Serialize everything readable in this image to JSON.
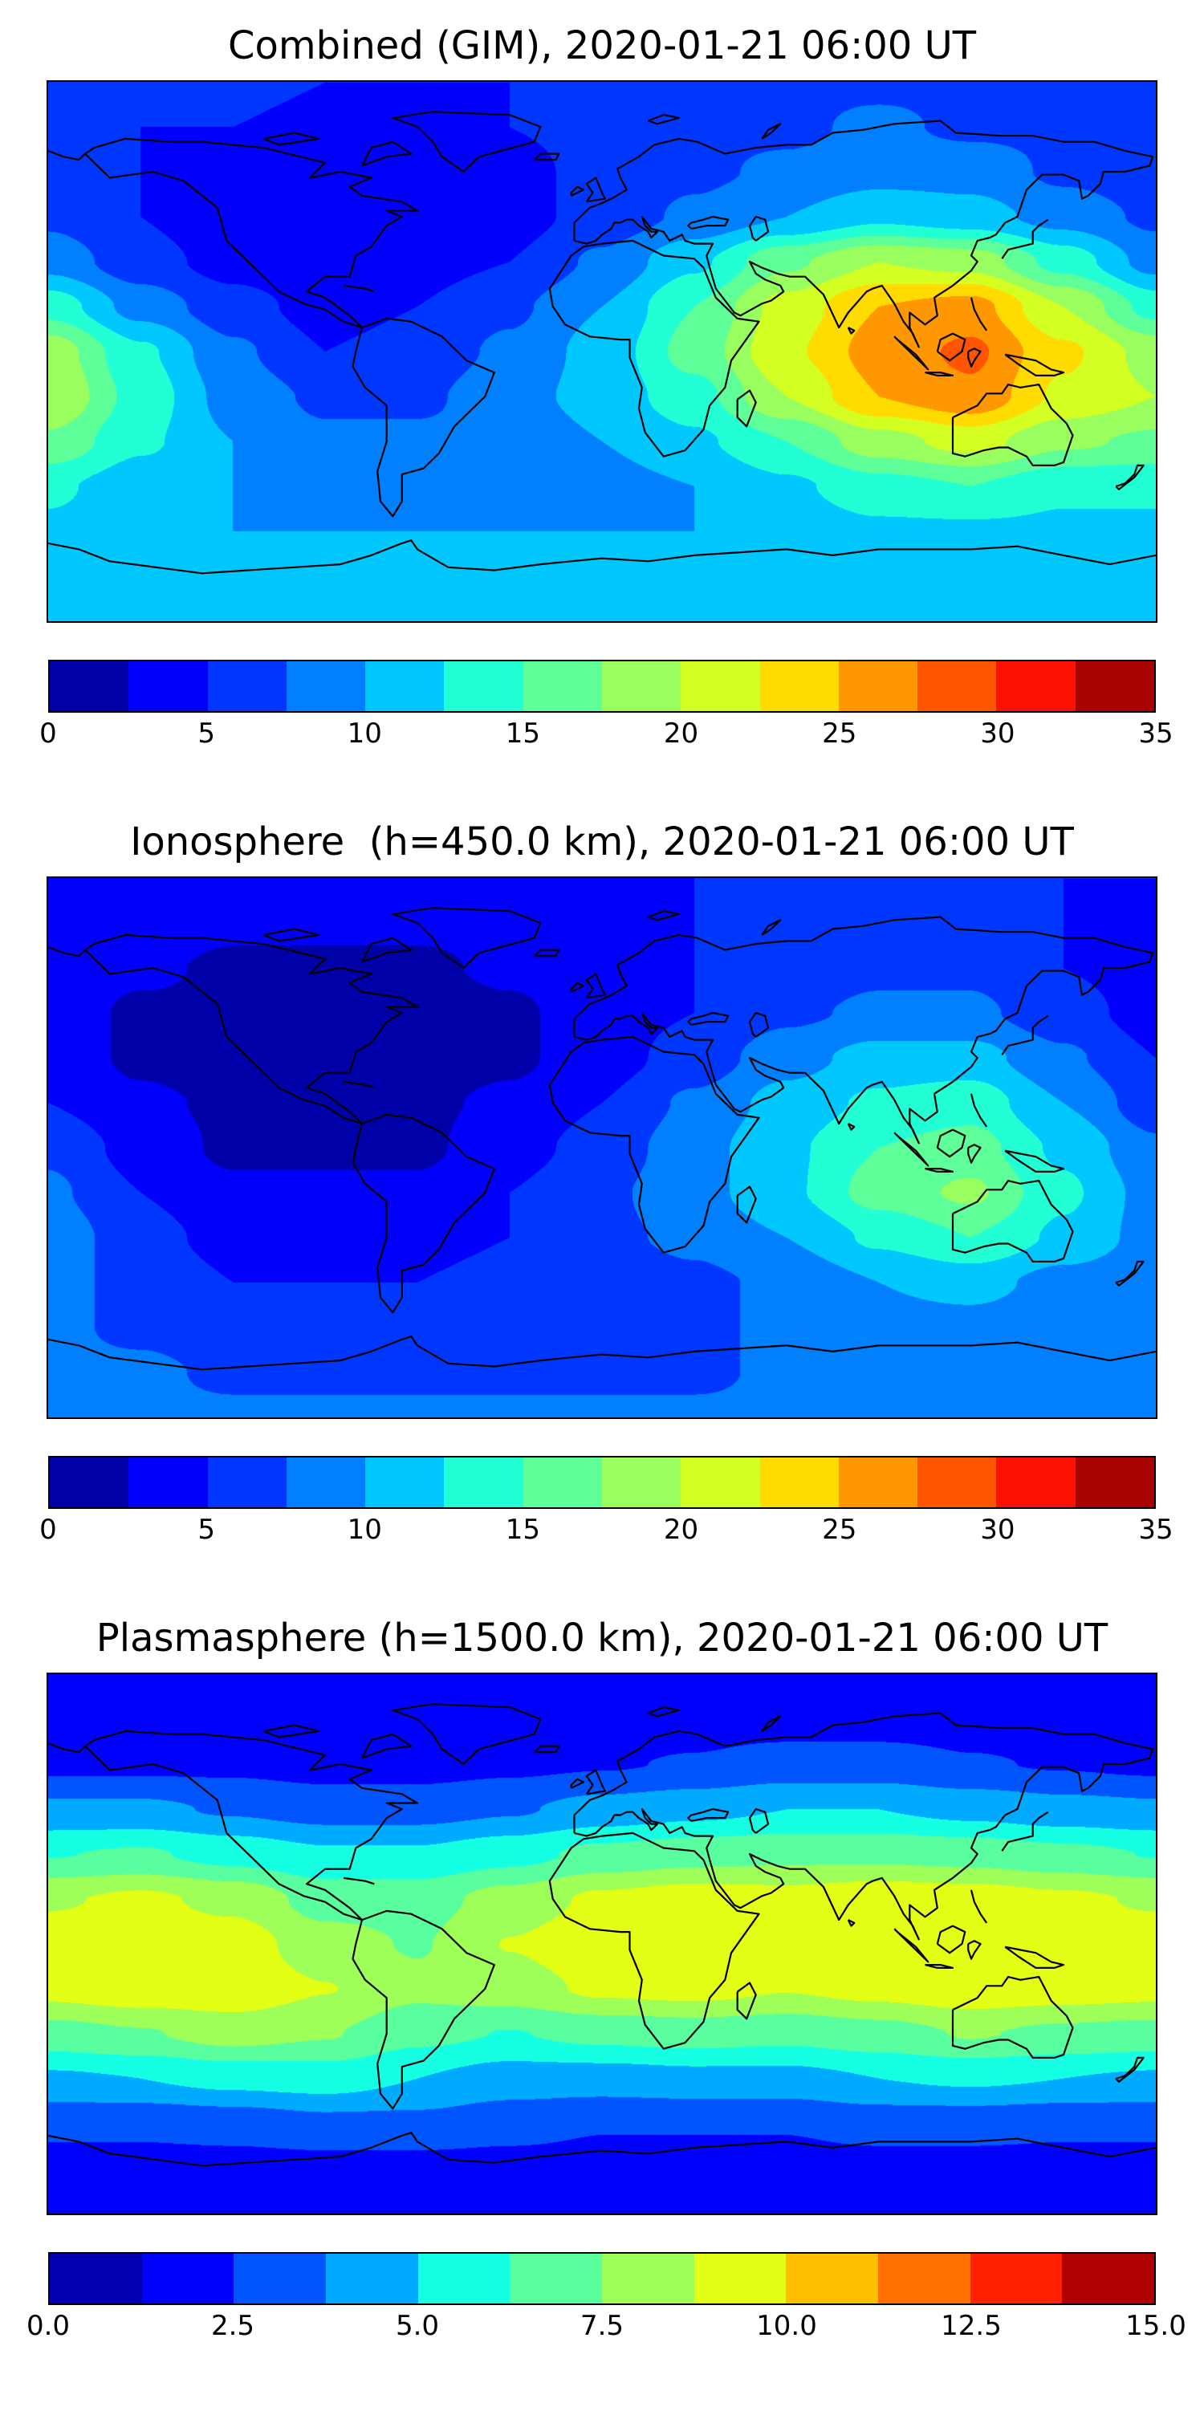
{
  "figure": {
    "background_color": "#ffffff",
    "text_color": "#000000"
  },
  "chart_data": [
    {
      "type": "heatmap",
      "subtype": "filled-contour world map (equirectangular, coastlines overlaid)",
      "title": "Combined (GIM), 2020-01-21 06:00 UT",
      "colormap": "jet",
      "levels": 14,
      "vmin": 0,
      "vmax": 35,
      "colorbar_position": "bottom",
      "colorbar_ticks": [
        "0",
        "5",
        "10",
        "15",
        "20",
        "25",
        "30",
        "35"
      ],
      "colorbar_tick_values": [
        0,
        5,
        10,
        15,
        20,
        25,
        30,
        35
      ],
      "grid": {
        "lons": [
          -180,
          -150,
          -120,
          -90,
          -60,
          -30,
          0,
          30,
          60,
          90,
          120,
          150,
          180
        ],
        "lats": [
          90,
          75,
          60,
          45,
          30,
          15,
          0,
          -15,
          -30,
          -45,
          -60,
          -75,
          -90
        ],
        "values": [
          [
            6,
            6,
            6,
            5,
            5,
            5,
            6,
            6,
            7,
            7,
            7,
            6,
            6
          ],
          [
            6,
            5,
            5,
            4,
            4,
            5,
            6,
            7,
            7,
            8,
            7,
            7,
            6
          ],
          [
            6,
            5,
            4,
            3,
            3,
            4,
            6,
            7,
            8,
            9,
            9,
            7,
            6
          ],
          [
            7,
            5,
            3,
            3,
            3,
            4,
            6,
            8,
            10,
            12,
            11,
            9,
            7
          ],
          [
            9,
            6,
            4,
            3,
            4,
            5,
            8,
            12,
            17,
            20,
            19,
            14,
            9
          ],
          [
            14,
            9,
            6,
            4,
            5,
            7,
            10,
            15,
            21,
            25,
            26,
            20,
            14
          ],
          [
            19,
            13,
            8,
            5,
            6,
            8,
            11,
            16,
            22,
            26,
            28,
            23,
            19
          ],
          [
            20,
            14,
            9,
            7,
            7,
            9,
            11,
            14,
            20,
            25,
            27,
            22,
            20
          ],
          [
            17,
            13,
            10,
            8,
            8,
            8,
            10,
            12,
            15,
            19,
            21,
            18,
            17
          ],
          [
            13,
            11,
            10,
            9,
            9,
            9,
            9,
            10,
            12,
            14,
            15,
            13,
            13
          ],
          [
            12,
            11,
            10,
            10,
            10,
            10,
            10,
            10,
            11,
            12,
            12,
            12,
            12
          ],
          [
            12,
            11,
            11,
            11,
            11,
            11,
            11,
            11,
            11,
            12,
            12,
            12,
            12
          ],
          [
            12,
            12,
            12,
            12,
            12,
            12,
            12,
            12,
            12,
            12,
            12,
            12,
            12
          ]
        ]
      }
    },
    {
      "type": "heatmap",
      "subtype": "filled-contour world map (equirectangular, coastlines overlaid)",
      "title": "Ionosphere  (h=450.0 km), 2020-01-21 06:00 UT",
      "colormap": "jet",
      "levels": 14,
      "vmin": 0,
      "vmax": 35,
      "colorbar_position": "bottom",
      "colorbar_ticks": [
        "0",
        "5",
        "10",
        "15",
        "20",
        "25",
        "30",
        "35"
      ],
      "colorbar_tick_values": [
        0,
        5,
        10,
        15,
        20,
        25,
        30,
        35
      ],
      "grid": {
        "lons": [
          -180,
          -150,
          -120,
          -90,
          -60,
          -30,
          0,
          30,
          60,
          90,
          120,
          150,
          180
        ],
        "lats": [
          90,
          75,
          60,
          45,
          30,
          15,
          0,
          -15,
          -30,
          -45,
          -60,
          -75,
          -90
        ],
        "values": [
          [
            5,
            4,
            4,
            4,
            4,
            4,
            4,
            5,
            6,
            6,
            6,
            5,
            5
          ],
          [
            4,
            4,
            3,
            3,
            3,
            3,
            4,
            5,
            6,
            6,
            6,
            5,
            4
          ],
          [
            4,
            3,
            2,
            2,
            2,
            3,
            4,
            5,
            6,
            7,
            7,
            5,
            4
          ],
          [
            4,
            2,
            2,
            1,
            1,
            2,
            4,
            5,
            7,
            8,
            8,
            6,
            4
          ],
          [
            4,
            2,
            1,
            1,
            1,
            2,
            4,
            6,
            9,
            11,
            11,
            8,
            5
          ],
          [
            5,
            3,
            2,
            1,
            2,
            3,
            5,
            8,
            11,
            13,
            14,
            10,
            6
          ],
          [
            7,
            4,
            2,
            2,
            2,
            4,
            6,
            9,
            12,
            15,
            16,
            12,
            8
          ],
          [
            8,
            5,
            3,
            3,
            3,
            5,
            7,
            9,
            12,
            16,
            18,
            13,
            9
          ],
          [
            9,
            6,
            4,
            4,
            4,
            5,
            7,
            8,
            10,
            13,
            15,
            12,
            9
          ],
          [
            8,
            7,
            5,
            5,
            5,
            6,
            6,
            7,
            8,
            10,
            11,
            9,
            8
          ],
          [
            8,
            7,
            6,
            6,
            6,
            6,
            7,
            7,
            8,
            9,
            9,
            8,
            8
          ],
          [
            8,
            8,
            7,
            7,
            7,
            7,
            7,
            7,
            8,
            8,
            8,
            8,
            8
          ],
          [
            8,
            8,
            8,
            8,
            8,
            8,
            8,
            8,
            8,
            8,
            8,
            8,
            8
          ]
        ]
      }
    },
    {
      "type": "heatmap",
      "subtype": "filled-contour world map (equirectangular, coastlines overlaid)",
      "title": "Plasmasphere (h=1500.0 km), 2020-01-21 06:00 UT",
      "colormap": "jet",
      "levels": 12,
      "vmin": 0,
      "vmax": 15,
      "colorbar_position": "bottom",
      "colorbar_ticks": [
        "0.0",
        "2.5",
        "5.0",
        "7.5",
        "10.0",
        "12.5",
        "15.0"
      ],
      "colorbar_tick_values": [
        0,
        2.5,
        5,
        7.5,
        10,
        12.5,
        15
      ],
      "grid": {
        "lons": [
          -180,
          -150,
          -120,
          -90,
          -60,
          -30,
          0,
          30,
          60,
          90,
          120,
          150,
          180
        ],
        "lats": [
          90,
          75,
          60,
          45,
          30,
          15,
          0,
          -15,
          -30,
          -45,
          -60,
          -75,
          -90
        ],
        "values": [
          [
            1.5,
            1.5,
            1.5,
            1.5,
            1.5,
            1.5,
            1.5,
            1.5,
            1.5,
            1.5,
            1.5,
            1.5,
            1.5
          ],
          [
            1.8,
            1.8,
            1.8,
            1.8,
            1.8,
            1.8,
            1.8,
            2.0,
            2.0,
            2.0,
            2.0,
            1.8,
            1.8
          ],
          [
            2.2,
            2.2,
            2.2,
            2.0,
            2.0,
            2.2,
            2.4,
            2.6,
            3.0,
            3.0,
            2.6,
            2.4,
            2.2
          ],
          [
            4.0,
            4.0,
            3.6,
            3.2,
            3.2,
            3.6,
            4.2,
            4.6,
            5.0,
            5.0,
            4.6,
            4.2,
            4.0
          ],
          [
            6.2,
            6.4,
            5.8,
            5.2,
            5.2,
            5.8,
            6.6,
            7.0,
            7.2,
            7.2,
            7.0,
            6.6,
            6.2
          ],
          [
            8.6,
            9.0,
            8.4,
            7.0,
            7.0,
            8.0,
            9.0,
            9.4,
            9.2,
            9.6,
            9.4,
            9.0,
            8.6
          ],
          [
            9.4,
            9.8,
            9.4,
            8.0,
            7.4,
            8.8,
            9.6,
            9.8,
            9.4,
            9.8,
            9.8,
            9.4,
            9.4
          ],
          [
            9.2,
            9.6,
            9.6,
            8.8,
            7.8,
            8.2,
            9.0,
            9.2,
            8.8,
            9.2,
            9.6,
            9.4,
            9.2
          ],
          [
            7.0,
            7.4,
            8.0,
            7.6,
            6.6,
            6.2,
            6.6,
            6.8,
            6.6,
            7.0,
            7.6,
            7.2,
            7.0
          ],
          [
            4.8,
            5.0,
            5.4,
            5.6,
            5.0,
            4.4,
            4.4,
            4.6,
            4.6,
            5.0,
            5.2,
            5.0,
            4.8
          ],
          [
            2.8,
            2.8,
            3.0,
            3.4,
            3.4,
            3.0,
            2.6,
            2.6,
            2.6,
            3.0,
            3.0,
            2.8,
            2.8
          ],
          [
            2.0,
            2.0,
            2.0,
            2.0,
            2.0,
            2.0,
            2.0,
            2.0,
            2.0,
            2.0,
            2.0,
            2.0,
            2.0
          ],
          [
            1.8,
            1.8,
            1.8,
            1.8,
            1.8,
            1.8,
            1.8,
            1.8,
            1.8,
            1.8,
            1.8,
            1.8,
            1.8
          ]
        ]
      }
    }
  ]
}
